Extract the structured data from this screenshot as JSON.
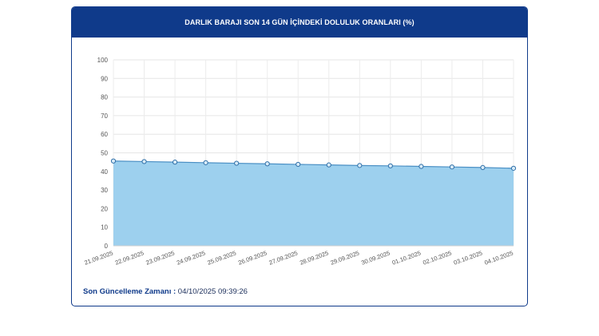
{
  "header": {
    "title": "DARLIK BARAJI SON 14 GÜN İÇİNDEKİ DOLULUK ORANLARI (%)"
  },
  "footer": {
    "label": "Son Güncelleme Zamanı :",
    "value": "04/10/2025 09:39:26"
  },
  "colors": {
    "header_bg": "#0f3a8a",
    "area_fill": "#9dd0ee",
    "line": "#4a8fc4",
    "point_stroke": "#2f6fa8"
  },
  "chart_data": {
    "type": "area",
    "title": "DARLIK BARAJI SON 14 GÜN İÇİNDEKİ DOLULUK ORANLARI (%)",
    "categories": [
      "21.09.2025",
      "22.09.2025",
      "23.09.2025",
      "24.09.2025",
      "25.09.2025",
      "26.09.2025",
      "27.09.2025",
      "28.09.2025",
      "29.09.2025",
      "30.09.2025",
      "01.10.2025",
      "02.10.2025",
      "03.10.2025",
      "04.10.2025"
    ],
    "values": [
      45.6,
      45.3,
      45.0,
      44.7,
      44.4,
      44.1,
      43.8,
      43.5,
      43.2,
      43.0,
      42.7,
      42.4,
      42.1,
      41.7
    ],
    "yticks": [
      0,
      10,
      20,
      30,
      40,
      50,
      60,
      70,
      80,
      90,
      100
    ],
    "ylim": [
      0,
      100
    ],
    "xlabel": "",
    "ylabel": "",
    "grid": true,
    "legend": "none"
  }
}
